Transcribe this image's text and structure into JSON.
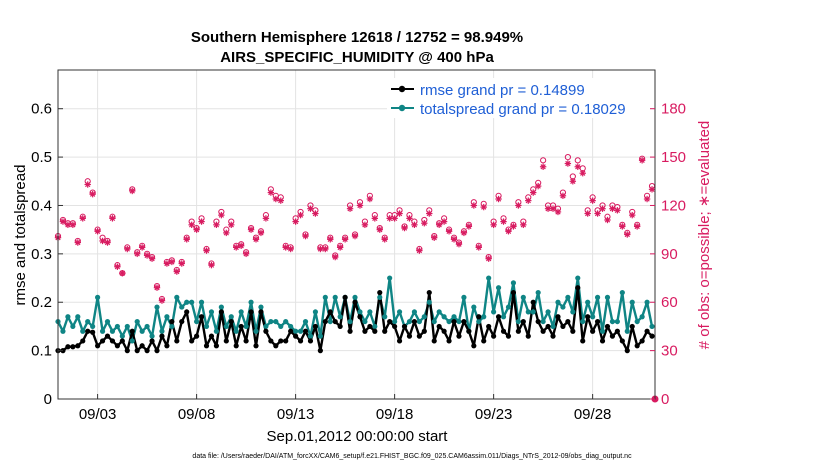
{
  "chart_data": {
    "type": "line",
    "title": "Southern Hemisphere 12618 / 12752 = 98.949%",
    "subtitle": "AIRS_SPECIFIC_HUMIDITY @ 400 hPa",
    "xlabel": "Sep.01,2012 00:00:00 start",
    "ylabel": "rmse and totalspread",
    "y2label": "# of obs: o=possible; ∗=evaluated",
    "x_ticks": [
      "09/03",
      "09/08",
      "09/13",
      "09/18",
      "09/23",
      "09/28"
    ],
    "y_ticks": [
      "0",
      "0.1",
      "0.2",
      "0.3",
      "0.4",
      "0.5",
      "0.6"
    ],
    "y2_ticks": [
      "0",
      "30",
      "60",
      "90",
      "120",
      "150",
      "180"
    ],
    "ylim": [
      0,
      0.68
    ],
    "y2lim": [
      0,
      204
    ],
    "xlim": [
      1,
      31.15
    ],
    "grid": true,
    "legend_position": "top-right",
    "footer": "data file: /Users/raeder/DAI/ATM_forcXX/CAM6_setup/f.e21.FHIST_BGC.f09_025.CAM6assim.011/Diags_NTrS_2012-09/obs_diag_output.nc",
    "colors": {
      "rmse": "#000000",
      "spread": "#0f8585",
      "obs": "#d81b60",
      "legend_text": "#1f5fd6"
    },
    "series": [
      {
        "name": "rmse grand pr = 0.14899",
        "key": "rmse",
        "axis": "left",
        "x": [
          1.0,
          1.25,
          1.5,
          1.75,
          2.0,
          2.25,
          2.5,
          2.75,
          3.0,
          3.25,
          3.5,
          3.75,
          4.0,
          4.25,
          4.5,
          4.75,
          5.0,
          5.25,
          5.5,
          5.75,
          6.0,
          6.25,
          6.5,
          6.75,
          7.0,
          7.25,
          7.5,
          7.75,
          8.0,
          8.25,
          8.5,
          8.75,
          9.0,
          9.25,
          9.5,
          9.75,
          10.0,
          10.25,
          10.5,
          10.75,
          11.0,
          11.25,
          11.5,
          11.75,
          12.0,
          12.25,
          12.5,
          12.75,
          13.0,
          13.25,
          13.5,
          13.75,
          14.0,
          14.25,
          14.5,
          14.75,
          15.0,
          15.25,
          15.5,
          15.75,
          16.0,
          16.25,
          16.5,
          16.75,
          17.0,
          17.25,
          17.5,
          17.75,
          18.0,
          18.25,
          18.5,
          18.75,
          19.0,
          19.25,
          19.5,
          19.75,
          20.0,
          20.25,
          20.5,
          20.75,
          21.0,
          21.25,
          21.5,
          21.75,
          22.0,
          22.25,
          22.5,
          22.75,
          23.0,
          23.25,
          23.5,
          23.75,
          24.0,
          24.25,
          24.5,
          24.75,
          25.0,
          25.25,
          25.5,
          25.75,
          26.0,
          26.25,
          26.5,
          26.75,
          27.0,
          27.25,
          27.5,
          27.75,
          28.0,
          28.25,
          28.5,
          28.75,
          29.0,
          29.25,
          29.5,
          29.75,
          30.0,
          30.25,
          30.5,
          30.75,
          31.0
        ],
        "values": [
          0.1,
          0.1,
          0.108,
          0.108,
          0.11,
          0.12,
          0.14,
          0.138,
          0.11,
          0.12,
          0.13,
          0.12,
          0.11,
          0.12,
          0.1,
          0.14,
          0.1,
          0.11,
          0.1,
          0.12,
          0.1,
          0.13,
          0.11,
          0.16,
          0.12,
          0.16,
          0.18,
          0.12,
          0.13,
          0.17,
          0.11,
          0.13,
          0.11,
          0.18,
          0.12,
          0.16,
          0.11,
          0.15,
          0.12,
          0.18,
          0.11,
          0.18,
          0.14,
          0.12,
          0.11,
          0.12,
          0.12,
          0.14,
          0.13,
          0.12,
          0.14,
          0.12,
          0.15,
          0.1,
          0.16,
          0.18,
          0.16,
          0.15,
          0.21,
          0.14,
          0.2,
          0.17,
          0.14,
          0.15,
          0.14,
          0.22,
          0.14,
          0.16,
          0.15,
          0.12,
          0.15,
          0.13,
          0.16,
          0.13,
          0.14,
          0.22,
          0.12,
          0.15,
          0.14,
          0.12,
          0.16,
          0.13,
          0.16,
          0.14,
          0.11,
          0.17,
          0.12,
          0.15,
          0.13,
          0.17,
          0.14,
          0.13,
          0.22,
          0.14,
          0.16,
          0.13,
          0.2,
          0.16,
          0.14,
          0.15,
          0.13,
          0.17,
          0.15,
          0.16,
          0.14,
          0.23,
          0.12,
          0.17,
          0.14,
          0.16,
          0.12,
          0.15,
          0.13,
          0.14,
          0.12,
          0.1,
          0.15,
          0.11,
          0.12,
          0.14,
          0.13
        ]
      },
      {
        "name": "totalspread grand pr = 0.18029",
        "key": "spread",
        "axis": "left",
        "x": [
          1.0,
          1.25,
          1.5,
          1.75,
          2.0,
          2.25,
          2.5,
          2.75,
          3.0,
          3.25,
          3.5,
          3.75,
          4.0,
          4.25,
          4.5,
          4.75,
          5.0,
          5.25,
          5.5,
          5.75,
          6.0,
          6.25,
          6.5,
          6.75,
          7.0,
          7.25,
          7.5,
          7.75,
          8.0,
          8.25,
          8.5,
          8.75,
          9.0,
          9.25,
          9.5,
          9.75,
          10.0,
          10.25,
          10.5,
          10.75,
          11.0,
          11.25,
          11.5,
          11.75,
          12.0,
          12.25,
          12.5,
          12.75,
          13.0,
          13.25,
          13.5,
          13.75,
          14.0,
          14.25,
          14.5,
          14.75,
          15.0,
          15.25,
          15.5,
          15.75,
          16.0,
          16.25,
          16.5,
          16.75,
          17.0,
          17.25,
          17.5,
          17.75,
          18.0,
          18.25,
          18.5,
          18.75,
          19.0,
          19.25,
          19.5,
          19.75,
          20.0,
          20.25,
          20.5,
          20.75,
          21.0,
          21.25,
          21.5,
          21.75,
          22.0,
          22.25,
          22.5,
          22.75,
          23.0,
          23.25,
          23.5,
          23.75,
          24.0,
          24.25,
          24.5,
          24.75,
          25.0,
          25.25,
          25.5,
          25.75,
          26.0,
          26.25,
          26.5,
          26.75,
          27.0,
          27.25,
          27.5,
          27.75,
          28.0,
          28.25,
          28.5,
          28.75,
          29.0,
          29.25,
          29.5,
          29.75,
          30.0,
          30.25,
          30.5,
          30.75,
          31.0
        ],
        "values": [
          0.16,
          0.14,
          0.17,
          0.15,
          0.17,
          0.14,
          0.16,
          0.15,
          0.21,
          0.14,
          0.16,
          0.14,
          0.15,
          0.13,
          0.15,
          0.12,
          0.16,
          0.14,
          0.15,
          0.13,
          0.19,
          0.14,
          0.17,
          0.15,
          0.21,
          0.19,
          0.2,
          0.2,
          0.16,
          0.2,
          0.15,
          0.18,
          0.14,
          0.19,
          0.15,
          0.17,
          0.14,
          0.18,
          0.15,
          0.2,
          0.14,
          0.19,
          0.15,
          0.16,
          0.16,
          0.15,
          0.16,
          0.15,
          0.14,
          0.14,
          0.16,
          0.13,
          0.18,
          0.13,
          0.21,
          0.16,
          0.21,
          0.17,
          0.21,
          0.16,
          0.21,
          0.18,
          0.16,
          0.18,
          0.15,
          0.21,
          0.17,
          0.25,
          0.16,
          0.18,
          0.15,
          0.16,
          0.18,
          0.16,
          0.17,
          0.2,
          0.16,
          0.18,
          0.17,
          0.16,
          0.17,
          0.16,
          0.21,
          0.14,
          0.19,
          0.16,
          0.17,
          0.25,
          0.18,
          0.23,
          0.17,
          0.19,
          0.24,
          0.16,
          0.21,
          0.18,
          0.18,
          0.22,
          0.16,
          0.18,
          0.15,
          0.2,
          0.19,
          0.21,
          0.18,
          0.25,
          0.16,
          0.2,
          0.17,
          0.21,
          0.14,
          0.21,
          0.16,
          0.16,
          0.22,
          0.14,
          0.2,
          0.16,
          0.17,
          0.2,
          0.15
        ]
      },
      {
        "name": "obs possible",
        "key": "obs_possible",
        "axis": "right",
        "marker": "o",
        "x": [
          1.0,
          1.25,
          1.5,
          1.75,
          2.0,
          2.25,
          2.5,
          2.75,
          3.0,
          3.25,
          3.5,
          3.75,
          4.0,
          4.25,
          4.5,
          4.75,
          5.0,
          5.25,
          5.5,
          5.75,
          6.0,
          6.25,
          6.5,
          6.75,
          7.0,
          7.25,
          7.5,
          7.75,
          8.0,
          8.25,
          8.5,
          8.75,
          9.0,
          9.25,
          9.5,
          9.75,
          10.0,
          10.25,
          10.5,
          10.75,
          11.0,
          11.25,
          11.5,
          11.75,
          12.0,
          12.25,
          12.5,
          12.75,
          13.0,
          13.25,
          13.5,
          13.75,
          14.0,
          14.25,
          14.5,
          14.75,
          15.0,
          15.25,
          15.5,
          15.75,
          16.0,
          16.25,
          16.5,
          16.75,
          17.0,
          17.25,
          17.5,
          17.75,
          18.0,
          18.25,
          18.5,
          18.75,
          19.0,
          19.25,
          19.5,
          19.75,
          20.0,
          20.25,
          20.5,
          20.75,
          21.0,
          21.25,
          21.5,
          21.75,
          22.0,
          22.25,
          22.5,
          22.75,
          23.0,
          23.25,
          23.5,
          23.75,
          24.0,
          24.25,
          24.5,
          24.75,
          25.0,
          25.25,
          25.5,
          25.75,
          26.0,
          26.25,
          26.5,
          26.75,
          27.0,
          27.25,
          27.5,
          27.75,
          28.0,
          28.25,
          28.5,
          28.75,
          29.0,
          29.25,
          29.5,
          29.75,
          30.0,
          30.25,
          30.5,
          30.75,
          31.0
        ],
        "values": [
          101,
          111,
          109,
          109,
          98,
          113,
          135,
          128,
          105,
          100,
          98,
          113,
          83,
          78,
          94,
          130,
          91,
          95,
          90,
          88,
          70,
          62,
          85,
          86,
          80,
          85,
          100,
          110,
          106,
          112,
          93,
          84,
          110,
          116,
          105,
          110,
          95,
          96,
          91,
          106,
          100,
          104,
          114,
          130,
          126,
          125,
          95,
          94,
          112,
          116,
          102,
          120,
          117,
          94,
          94,
          100,
          89,
          95,
          100,
          120,
          102,
          122,
          110,
          126,
          114,
          106,
          100,
          114,
          114,
          117,
          107,
          114,
          110,
          93,
          111,
          117,
          101,
          109,
          112,
          105,
          100,
          97,
          104,
          108,
          122,
          95,
          121,
          88,
          110,
          126,
          112,
          105,
          108,
          122,
          110,
          125,
          130,
          134,
          148,
          120,
          120,
          118,
          128,
          150,
          138,
          148,
          143,
          117,
          125,
          117,
          120,
          113,
          120,
          119,
          108,
          103,
          116,
          108,
          149,
          126,
          132
        ]
      },
      {
        "name": "obs evaluated",
        "key": "obs_evaluated",
        "axis": "right",
        "marker": "*",
        "x": [
          1.0,
          1.25,
          1.5,
          1.75,
          2.0,
          2.25,
          2.5,
          2.75,
          3.0,
          3.25,
          3.5,
          3.75,
          4.0,
          4.25,
          4.5,
          4.75,
          5.0,
          5.25,
          5.5,
          5.75,
          6.0,
          6.25,
          6.5,
          6.75,
          7.0,
          7.25,
          7.5,
          7.75,
          8.0,
          8.25,
          8.5,
          8.75,
          9.0,
          9.25,
          9.5,
          9.75,
          10.0,
          10.25,
          10.5,
          10.75,
          11.0,
          11.25,
          11.5,
          11.75,
          12.0,
          12.25,
          12.5,
          12.75,
          13.0,
          13.25,
          13.5,
          13.75,
          14.0,
          14.25,
          14.5,
          14.75,
          15.0,
          15.25,
          15.5,
          15.75,
          16.0,
          16.25,
          16.5,
          16.75,
          17.0,
          17.25,
          17.5,
          17.75,
          18.0,
          18.25,
          18.5,
          18.75,
          19.0,
          19.25,
          19.5,
          19.75,
          20.0,
          20.25,
          20.5,
          20.75,
          21.0,
          21.25,
          21.5,
          21.75,
          22.0,
          22.25,
          22.5,
          22.75,
          23.0,
          23.25,
          23.5,
          23.75,
          24.0,
          24.25,
          24.5,
          24.75,
          25.0,
          25.25,
          25.5,
          25.75,
          26.0,
          26.25,
          26.5,
          26.75,
          27.0,
          27.25,
          27.5,
          27.75,
          28.0,
          28.25,
          28.5,
          28.75,
          29.0,
          29.25,
          29.5,
          29.75,
          30.0,
          30.25,
          30.5,
          30.75,
          31.0
        ],
        "values": [
          100,
          110,
          108,
          108,
          97,
          112,
          133,
          127,
          104,
          98,
          97,
          112,
          82,
          78,
          93,
          129,
          90,
          94,
          89,
          87,
          69,
          61,
          84,
          85,
          79,
          84,
          99,
          108,
          105,
          110,
          92,
          83,
          108,
          114,
          103,
          108,
          94,
          95,
          90,
          105,
          99,
          103,
          112,
          128,
          124,
          123,
          94,
          93,
          110,
          114,
          101,
          118,
          115,
          93,
          93,
          99,
          88,
          94,
          99,
          118,
          101,
          120,
          108,
          124,
          112,
          105,
          99,
          112,
          112,
          115,
          106,
          112,
          108,
          92,
          109,
          115,
          100,
          108,
          110,
          104,
          99,
          96,
          103,
          107,
          120,
          94,
          119,
          87,
          108,
          124,
          110,
          104,
          107,
          120,
          108,
          123,
          128,
          132,
          144,
          118,
          118,
          116,
          126,
          146,
          135,
          144,
          140,
          115,
          123,
          115,
          118,
          111,
          118,
          117,
          107,
          102,
          114,
          107,
          148,
          124,
          130
        ]
      }
    ]
  }
}
